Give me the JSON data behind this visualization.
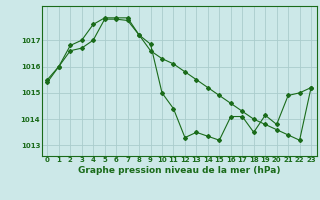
{
  "xlabel": "Graphe pression niveau de la mer (hPa)",
  "background_color": "#cce8e8",
  "grid_color": "#aacccc",
  "line_color": "#1a6b1a",
  "ylim": [
    1012.6,
    1018.3
  ],
  "xlim": [
    -0.5,
    23.5
  ],
  "yticks": [
    1013,
    1014,
    1015,
    1016,
    1017
  ],
  "xticks": [
    0,
    1,
    2,
    3,
    4,
    5,
    6,
    7,
    8,
    9,
    10,
    11,
    12,
    13,
    14,
    15,
    16,
    17,
    18,
    19,
    20,
    21,
    22,
    23
  ],
  "series1_x": [
    0,
    1,
    2,
    3,
    4,
    5,
    6,
    7,
    8,
    9,
    10,
    11,
    12,
    13,
    14,
    15,
    16,
    17,
    18,
    19,
    20,
    21,
    22,
    23
  ],
  "series1_y": [
    1015.5,
    1016.0,
    1016.6,
    1016.7,
    1017.0,
    1017.8,
    1017.8,
    1017.75,
    1017.2,
    1016.6,
    1016.3,
    1016.1,
    1015.8,
    1015.5,
    1015.2,
    1014.9,
    1014.6,
    1014.3,
    1014.0,
    1013.8,
    1013.6,
    1013.4,
    1013.2,
    1015.2
  ],
  "series2_x": [
    0,
    1,
    2,
    3,
    4,
    5,
    6,
    7,
    8,
    9,
    10,
    11,
    12,
    13,
    14,
    15,
    16,
    17,
    18,
    19,
    20,
    21,
    22,
    23
  ],
  "series2_y": [
    1015.4,
    1016.0,
    1016.8,
    1017.0,
    1017.6,
    1017.85,
    1017.85,
    1017.85,
    1017.2,
    1016.85,
    1015.0,
    1014.4,
    1013.3,
    1013.5,
    1013.35,
    1013.2,
    1014.1,
    1014.1,
    1013.5,
    1014.15,
    1013.8,
    1014.9,
    1015.0,
    1015.2
  ]
}
